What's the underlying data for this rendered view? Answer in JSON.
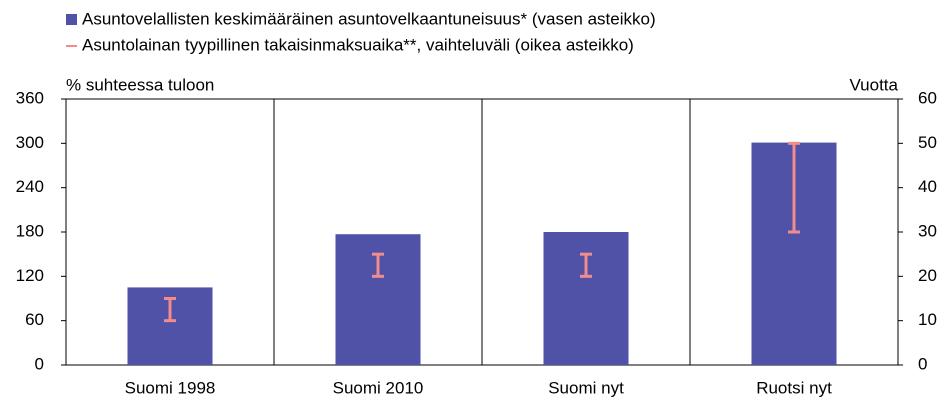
{
  "chart_data": {
    "type": "bar_range",
    "categories": [
      "Suomi 1998",
      "Suomi 2010",
      "Suomi nyt",
      "Ruotsi nyt"
    ],
    "series": [
      {
        "name": "Asuntovelallisten keskimääräinen asuntovelkaantuneisuus* (vasen asteikko)",
        "color": "#4f52a6",
        "values": [
          105,
          177,
          180,
          301
        ]
      },
      {
        "name": "Asuntolainan tyypillinen takaisinmaksuaika**, vaihteluväli (oikea asteikko)",
        "color": "#f08c8c",
        "axis": "y2",
        "low": [
          10,
          20,
          20,
          30
        ],
        "high": [
          15,
          25,
          25,
          50
        ]
      }
    ],
    "ylabel": "% suhteessa tuloon",
    "y2label": "Vuotta",
    "ylim": [
      0,
      360
    ],
    "yticks": [
      0,
      60,
      120,
      180,
      240,
      300,
      360
    ],
    "y2lim": [
      0,
      60
    ],
    "y2ticks": [
      0,
      10,
      20,
      30,
      40,
      50,
      60
    ],
    "grid": "vertical"
  }
}
